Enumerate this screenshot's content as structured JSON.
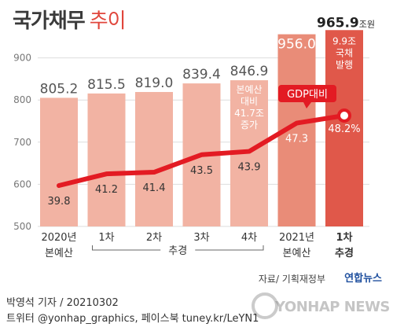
{
  "title": {
    "main": "국가채무",
    "sub": "추이"
  },
  "chart_data": {
    "type": "bar+line",
    "ylim": [
      500,
      1000
    ],
    "yticks": [
      500,
      600,
      700,
      800,
      900
    ],
    "grid": true,
    "categories": [
      "2020년 본예산",
      "1차",
      "2차",
      "3차",
      "4차",
      "2021년 본예산",
      "1차 추경"
    ],
    "xlabels": [
      [
        "2020년",
        "본예산"
      ],
      [
        "1차",
        ""
      ],
      [
        "2차",
        ""
      ],
      [
        "3차",
        ""
      ],
      [
        "4차",
        ""
      ],
      [
        "2021년",
        "본예산"
      ],
      [
        "1차",
        "추경"
      ]
    ],
    "group_label": "추경",
    "bar_series": {
      "values": [
        805.2,
        815.5,
        819.0,
        839.4,
        846.9,
        956.0,
        965.9
      ],
      "labels": [
        "805.2",
        "815.5",
        "819.0",
        "839.4",
        "846.9",
        "956.0",
        "965.9"
      ],
      "unit": "조원"
    },
    "line_series": {
      "name": "GDP대비",
      "values": [
        39.8,
        41.2,
        41.4,
        43.5,
        43.9,
        47.3,
        48.2
      ],
      "labels": [
        "39.8",
        "41.2",
        "41.4",
        "43.5",
        "43.9",
        "47.3",
        "48.2%"
      ]
    },
    "annotations": {
      "bar5": [
        "본예산",
        "대비",
        "41.7조",
        "증가"
      ],
      "bar7": [
        "9.9조",
        "국채",
        "발행"
      ]
    },
    "colors": {
      "bar": "#f2b3a3",
      "bar_highlight": "#e98c78",
      "bar_last": "#e0584a",
      "line": "#e31b23",
      "grid": "#dddddd",
      "callout": "#e31b23"
    }
  },
  "footer": {
    "author": "박영석 기자 /  20210302",
    "social": "트위터 @yonhap_graphics, 페이스북 tuney.kr/LeYN1"
  },
  "source": "자료/ 기획재정부",
  "brand": "연합뉴스",
  "watermark": "YONHAP NEWS"
}
